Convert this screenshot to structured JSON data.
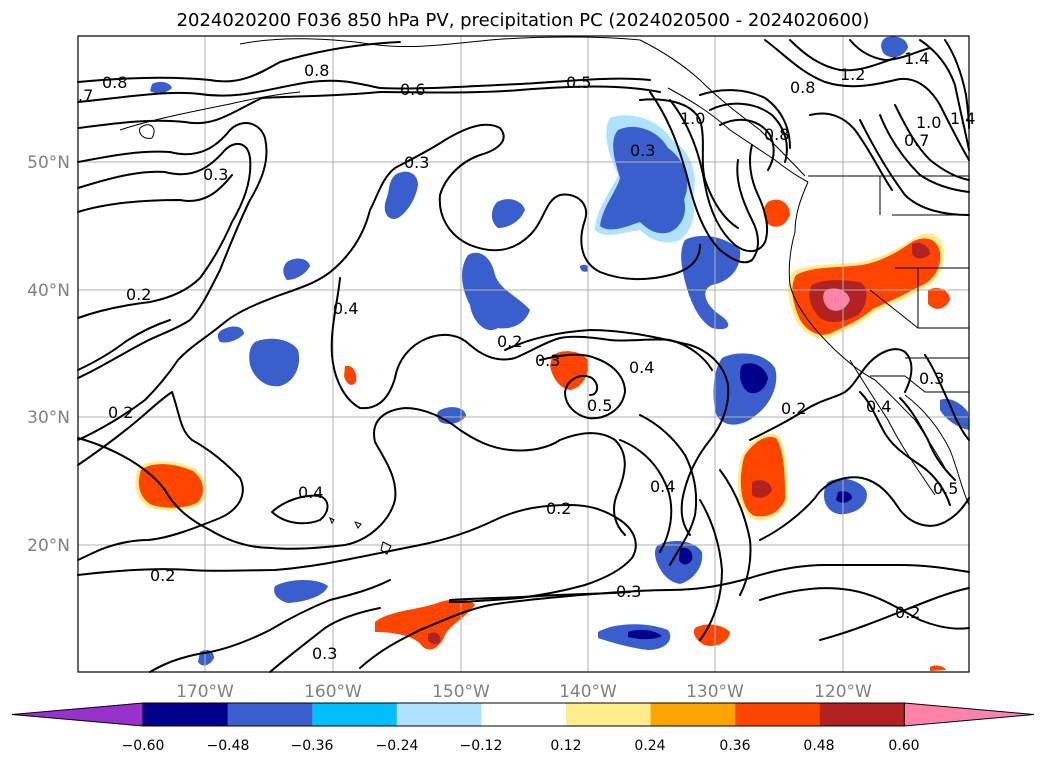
{
  "title": "2024020200 F036 850 hPa PV, precipitation PC (2024020500 - 2024020600)",
  "lon_labels": [
    "170°W",
    "160°W",
    "150°W",
    "140°W",
    "130°W",
    "120°W"
  ],
  "lat_labels": [
    "50°N",
    "40°N",
    "30°N",
    "20°N"
  ],
  "colorbar": {
    "colors": [
      "#9932cc",
      "#00008b",
      "#3a5fcd",
      "#00bfff",
      "#b0e2ff",
      "#ffffff",
      "#ffec8b",
      "#ffa500",
      "#ff4500",
      "#b22222",
      "#ff82ab"
    ],
    "ticks": [
      "−0.60",
      "−0.48",
      "−0.36",
      "−0.24",
      "−0.12",
      "0.12",
      "0.24",
      "0.36",
      "0.48",
      "0.60"
    ]
  },
  "contour_labels": [
    {
      "text": "0.8"
    },
    {
      "text": ".7"
    },
    {
      "text": "0.8"
    },
    {
      "text": "0.6"
    },
    {
      "text": "0.5"
    },
    {
      "text": "0.3"
    },
    {
      "text": "0.3"
    },
    {
      "text": "0.3"
    },
    {
      "text": "0.2"
    },
    {
      "text": "0.4"
    },
    {
      "text": "0.2"
    },
    {
      "text": "0.3"
    },
    {
      "text": "0.4"
    },
    {
      "text": "0.5"
    },
    {
      "text": "0.2"
    },
    {
      "text": "0.4"
    },
    {
      "text": "0.2"
    },
    {
      "text": "0.4"
    },
    {
      "text": "0.2"
    },
    {
      "text": "0.2"
    },
    {
      "text": "0.3"
    },
    {
      "text": "0.3"
    },
    {
      "text": "0.2"
    },
    {
      "text": "0.4"
    },
    {
      "text": "0.3"
    },
    {
      "text": "0.5"
    },
    {
      "text": "0.8"
    },
    {
      "text": "1.2"
    },
    {
      "text": "1.4"
    },
    {
      "text": "1.0"
    },
    {
      "text": "1.4"
    },
    {
      "text": "0.7"
    },
    {
      "text": "0.8"
    },
    {
      "text": "1.0"
    }
  ]
}
